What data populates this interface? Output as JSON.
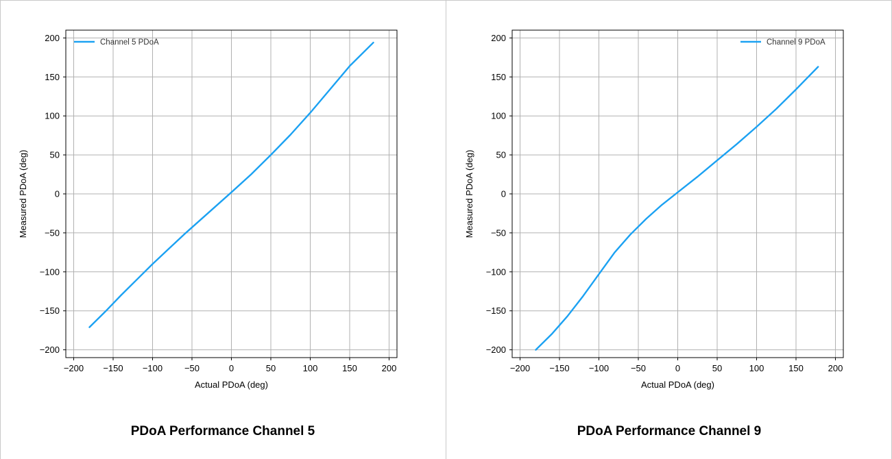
{
  "charts": [
    {
      "caption": "PDoA Performance Channel 5",
      "chart_data": {
        "type": "line",
        "xlabel": "Actual PDoA (deg)",
        "ylabel": "Measured PDoA (deg)",
        "xlim": [
          -210,
          210
        ],
        "ylim": [
          -210,
          210
        ],
        "xticks": [
          -200,
          -150,
          -100,
          -50,
          0,
          50,
          100,
          150,
          200
        ],
        "yticks": [
          -200,
          -150,
          -100,
          -50,
          0,
          50,
          100,
          150,
          200
        ],
        "grid": true,
        "legend": "top-left",
        "series": [
          {
            "name": "Channel 5 PDoA",
            "color": "#1ba1f2",
            "x": [
              -180,
              -160,
              -140,
              -120,
              -100,
              -80,
              -60,
              -40,
              -20,
              0,
              25,
              50,
              75,
              100,
              125,
              150,
              180
            ],
            "y": [
              -171,
              -151,
              -130,
              -110,
              -90,
              -71,
              -52,
              -34,
              -16,
              2,
              25,
              50,
              76,
              104,
              134,
              164,
              194
            ]
          }
        ]
      }
    },
    {
      "caption": "PDoA Performance Channel 9",
      "chart_data": {
        "type": "line",
        "xlabel": "Actual PDoA (deg)",
        "ylabel": "Measured PDoA (deg)",
        "xlim": [
          -210,
          210
        ],
        "ylim": [
          -210,
          210
        ],
        "xticks": [
          -200,
          -150,
          -100,
          -50,
          0,
          50,
          100,
          150,
          200
        ],
        "yticks": [
          -200,
          -150,
          -100,
          -50,
          0,
          50,
          100,
          150,
          200
        ],
        "grid": true,
        "legend": "top-right",
        "series": [
          {
            "name": "Channel 9 PDoA",
            "color": "#1ba1f2",
            "x": [
              -180,
              -160,
              -140,
              -120,
              -100,
              -80,
              -60,
              -40,
              -20,
              0,
              25,
              50,
              75,
              100,
              125,
              150,
              178
            ],
            "y": [
              -200,
              -180,
              -157,
              -131,
              -103,
              -75,
              -52,
              -32,
              -14,
              2,
              22,
              43,
              64,
              86,
              109,
              134,
              163
            ]
          }
        ]
      }
    }
  ]
}
